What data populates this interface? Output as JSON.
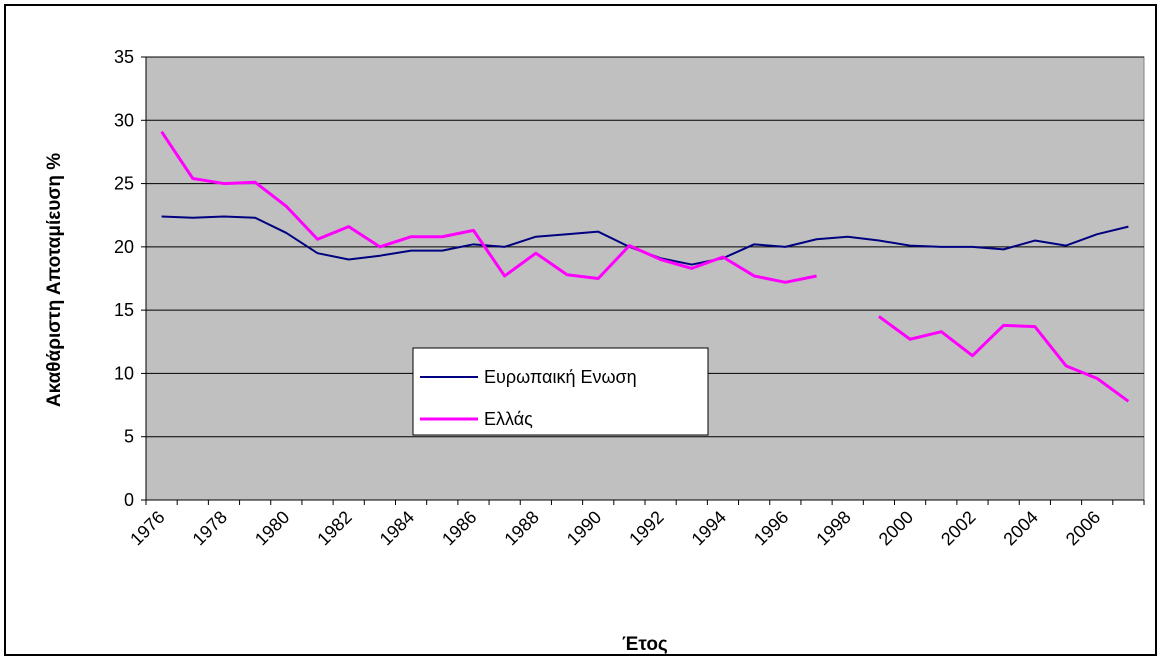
{
  "chart_data": {
    "type": "line",
    "x_label": "Έτος",
    "y_label": "Ακαθάριστη Αποταμίευση %",
    "categories": [
      "1976",
      null,
      "1978",
      null,
      "1980",
      null,
      "1982",
      null,
      "1984",
      null,
      "1986",
      null,
      "1988",
      null,
      "1990",
      null,
      "1992",
      null,
      "1994",
      null,
      "1996",
      null,
      "1998",
      null,
      "2000",
      null,
      "2002",
      null,
      "2004",
      null,
      "2006",
      null
    ],
    "series": [
      {
        "name": "Ευρωπαική Ενωση",
        "color": "#000080",
        "values": [
          22.4,
          22.3,
          22.4,
          22.3,
          21.1,
          19.5,
          19.0,
          19.3,
          19.7,
          19.7,
          20.2,
          20.0,
          20.8,
          21.0,
          21.2,
          20.0,
          19.1,
          18.6,
          19.1,
          20.2,
          20.0,
          20.6,
          20.8,
          20.5,
          20.1,
          20.0,
          20.0,
          19.8,
          20.5,
          20.1,
          21.0,
          21.6
        ]
      },
      {
        "name": "Ελλάς",
        "color": "#ff00ff",
        "values": [
          29.1,
          25.4,
          25.0,
          25.1,
          23.2,
          20.6,
          21.6,
          20.0,
          20.8,
          20.8,
          21.3,
          17.7,
          19.5,
          17.8,
          17.5,
          20.1,
          19.0,
          18.3,
          19.2,
          17.7,
          17.2,
          17.7,
          null,
          14.5,
          12.7,
          13.3,
          11.4,
          13.8,
          13.7,
          10.6,
          9.6,
          7.8
        ]
      }
    ],
    "ylim": [
      0,
      35
    ],
    "yticks": [
      0,
      5,
      10,
      15,
      20,
      25,
      30,
      35
    ],
    "grid": true
  }
}
